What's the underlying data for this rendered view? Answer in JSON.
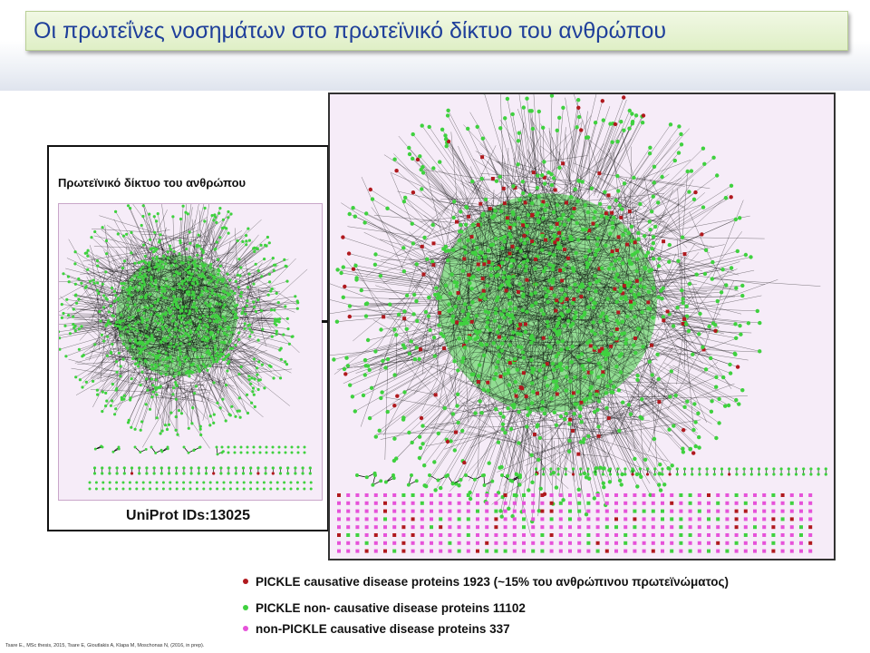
{
  "slide": {
    "title": "Οι πρωτεΐνες νοσημάτων στο πρωτεϊνικό δίκτυο του ανθρώπου"
  },
  "left_panel": {
    "title": "Πρωτεϊνικό δίκτυο του ανθρώπου",
    "label": "UniProt IDs:13025"
  },
  "legend": {
    "items": [
      {
        "text": "PICKLE causative disease proteins  1923 (~15% του ανθρώπινου πρωτεϊνώματος)",
        "color": "#b0191e"
      },
      {
        "text": "PICKLE non- causative disease proteins 11102",
        "color": "#3fd13f"
      },
      {
        "text": "non-PICKLE causative disease proteins  337",
        "color": "#e652d9"
      }
    ]
  },
  "citation": "Tsare E., MSc thesis, 2015, Tsare E, Gioutlakis A, Klapa M, Moschonas N, (2016, in prep).",
  "colors": {
    "node_green": "#3fd13f",
    "node_red": "#b0191e",
    "node_magenta": "#e652d9",
    "edge": "#000000",
    "panel_bg": "#f6ecf8",
    "title_text": "#1f3f9a"
  }
}
